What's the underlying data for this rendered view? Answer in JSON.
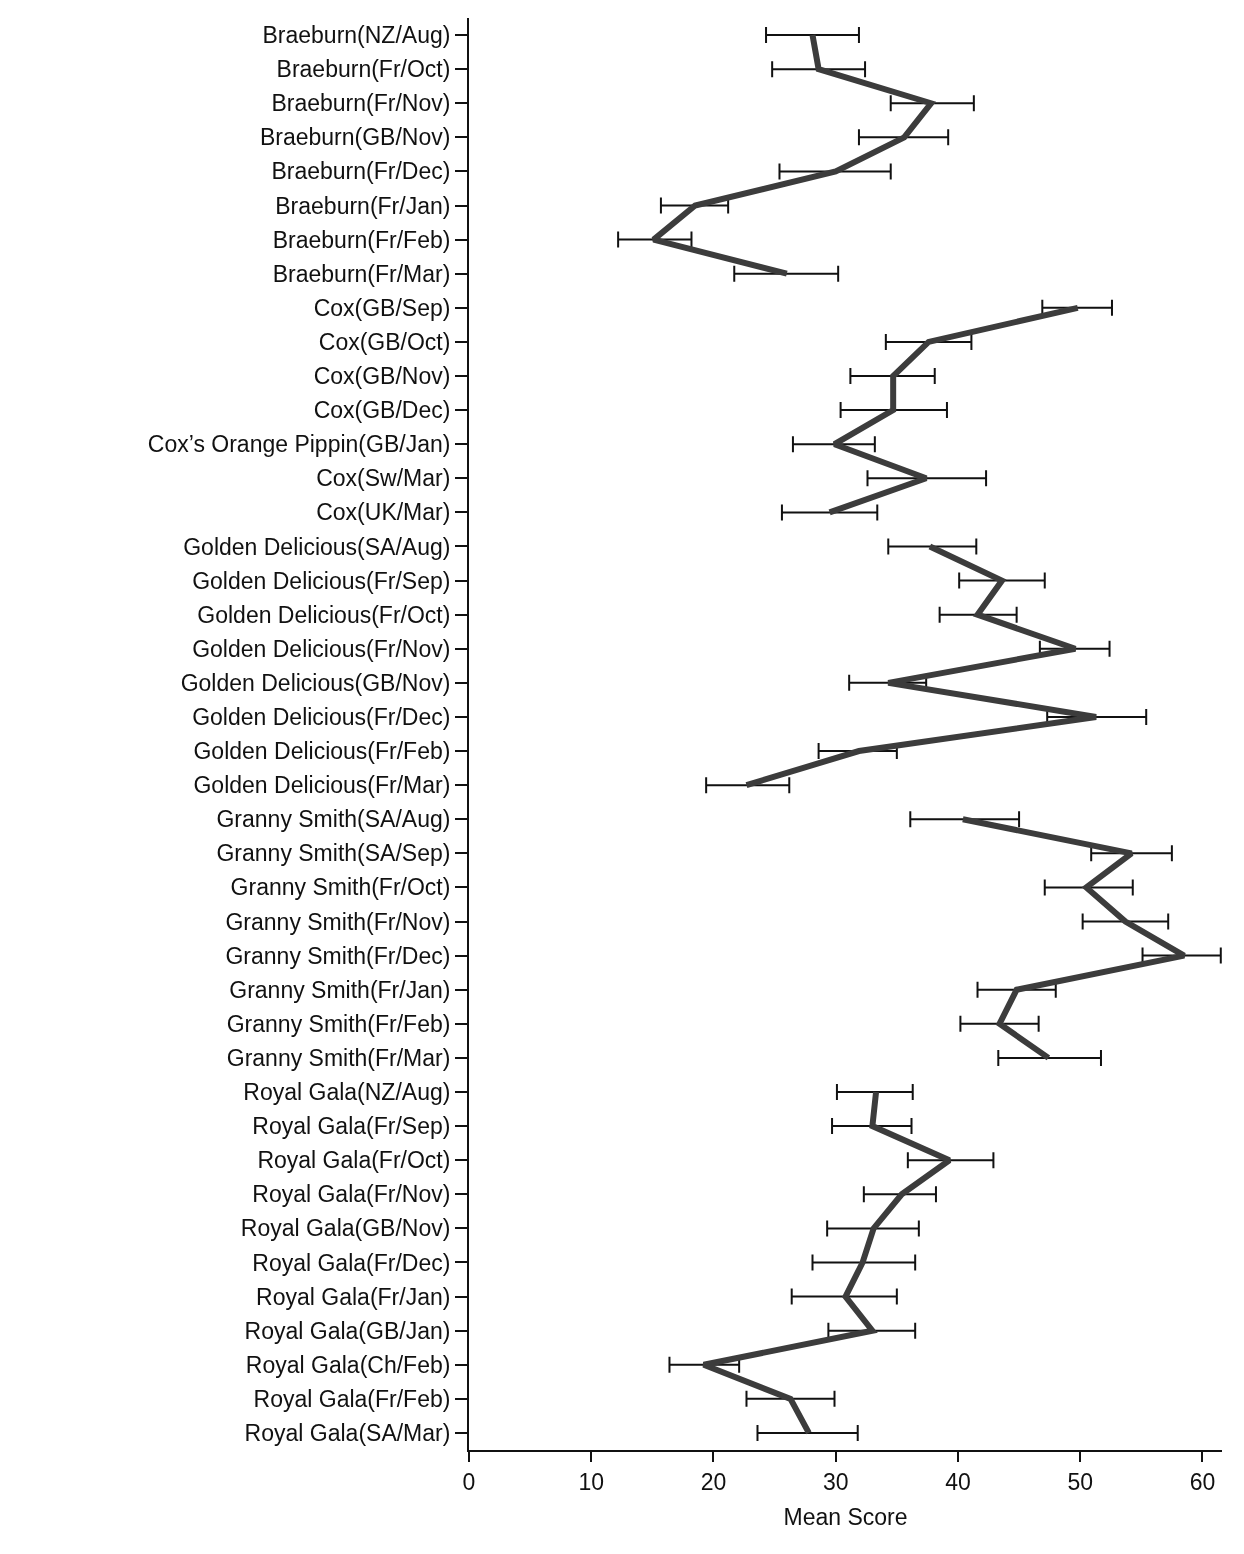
{
  "chart_data": {
    "type": "line",
    "orientation": "horizontal",
    "xlabel": "Mean Score",
    "categories": [
      "Braeburn(NZ/Aug)",
      "Braeburn(Fr/Oct)",
      "Braeburn(Fr/Nov)",
      "Braeburn(GB/Nov)",
      "Braeburn(Fr/Dec)",
      "Braeburn(Fr/Jan)",
      "Braeburn(Fr/Feb)",
      "Braeburn(Fr/Mar)",
      "Cox(GB/Sep)",
      "Cox(GB/Oct)",
      "Cox(GB/Nov)",
      "Cox(GB/Dec)",
      "Cox’s Orange Pippin(GB/Jan)",
      "Cox(Sw/Mar)",
      "Cox(UK/Mar)",
      "Golden Delicious(SA/Aug)",
      "Golden Delicious(Fr/Sep)",
      "Golden Delicious(Fr/Oct)",
      "Golden Delicious(Fr/Nov)",
      "Golden Delicious(GB/Nov)",
      "Golden Delicious(Fr/Dec)",
      "Golden Delicious(Fr/Feb)",
      "Golden Delicious(Fr/Mar)",
      "Granny Smith(SA/Aug)",
      "Granny Smith(SA/Sep)",
      "Granny Smith(Fr/Oct)",
      "Granny Smith(Fr/Nov)",
      "Granny Smith(Fr/Dec)",
      "Granny Smith(Fr/Jan)",
      "Granny Smith(Fr/Feb)",
      "Granny Smith(Fr/Mar)",
      "Royal Gala(NZ/Aug)",
      "Royal Gala(Fr/Sep)",
      "Royal Gala(Fr/Oct)",
      "Royal Gala(Fr/Nov)",
      "Royal Gala(GB/Nov)",
      "Royal Gala(Fr/Dec)",
      "Royal Gala(Fr/Jan)",
      "Royal Gala(GB/Jan)",
      "Royal Gala(Ch/Feb)",
      "Royal Gala(Fr/Feb)",
      "Royal Gala(SA/Mar)"
    ],
    "series": [
      {
        "color": "#3c3c3c",
        "values": [
          28.1,
          28.6,
          37.8,
          35.6,
          30.0,
          18.5,
          15.1,
          26.0,
          null,
          null,
          null,
          null,
          null,
          null,
          null,
          null,
          null,
          null,
          null,
          null,
          null,
          null,
          null,
          null,
          null,
          null,
          null,
          null,
          null,
          null,
          null,
          null,
          null,
          null,
          null,
          null,
          null,
          null,
          null,
          null,
          null,
          null
        ],
        "errors": [
          [
            24.3,
            31.9
          ],
          [
            24.8,
            32.4
          ],
          [
            34.5,
            41.3
          ],
          [
            31.9,
            39.2
          ],
          [
            25.4,
            34.5
          ],
          [
            15.7,
            21.2
          ],
          [
            12.2,
            18.2
          ],
          [
            21.7,
            30.2
          ],
          null,
          null,
          null,
          null,
          null,
          null,
          null,
          null,
          null,
          null,
          null,
          null,
          null,
          null,
          null,
          null,
          null,
          null,
          null,
          null,
          null,
          null,
          null,
          null,
          null,
          null,
          null,
          null,
          null,
          null,
          null,
          null,
          null,
          null
        ]
      },
      {
        "color": "#3c3c3c",
        "values": [
          null,
          null,
          null,
          null,
          null,
          null,
          null,
          null,
          49.8,
          37.6,
          34.7,
          34.7,
          29.9,
          37.4,
          29.5,
          null,
          null,
          null,
          null,
          null,
          null,
          null,
          null,
          null,
          null,
          null,
          null,
          null,
          null,
          null,
          null,
          null,
          null,
          null,
          null,
          null,
          null,
          null,
          null,
          null,
          null,
          null
        ],
        "errors": [
          null,
          null,
          null,
          null,
          null,
          null,
          null,
          null,
          [
            46.9,
            52.6
          ],
          [
            34.1,
            41.1
          ],
          [
            31.2,
            38.1
          ],
          [
            30.4,
            39.1
          ],
          [
            26.5,
            33.2
          ],
          [
            32.6,
            42.3
          ],
          [
            25.6,
            33.4
          ],
          null,
          null,
          null,
          null,
          null,
          null,
          null,
          null,
          null,
          null,
          null,
          null,
          null,
          null,
          null,
          null,
          null,
          null,
          null,
          null,
          null,
          null,
          null,
          null,
          null,
          null,
          null
        ]
      },
      {
        "color": "#3c3c3c",
        "values": [
          null,
          null,
          null,
          null,
          null,
          null,
          null,
          null,
          null,
          null,
          null,
          null,
          null,
          null,
          null,
          37.7,
          43.6,
          41.6,
          49.6,
          34.3,
          51.3,
          31.9,
          22.7,
          null,
          null,
          null,
          null,
          null,
          null,
          null,
          null,
          null,
          null,
          null,
          null,
          null,
          null,
          null,
          null,
          null,
          null,
          null
        ],
        "errors": [
          null,
          null,
          null,
          null,
          null,
          null,
          null,
          null,
          null,
          null,
          null,
          null,
          null,
          null,
          null,
          [
            34.3,
            41.5
          ],
          [
            40.1,
            47.1
          ],
          [
            38.5,
            44.8
          ],
          [
            46.7,
            52.4
          ],
          [
            31.1,
            37.4
          ],
          [
            47.3,
            55.4
          ],
          [
            28.6,
            35.0
          ],
          [
            19.4,
            26.2
          ],
          null,
          null,
          null,
          null,
          null,
          null,
          null,
          null,
          null,
          null,
          null,
          null,
          null,
          null,
          null,
          null,
          null,
          null,
          null
        ]
      },
      {
        "color": "#3c3c3c",
        "values": [
          null,
          null,
          null,
          null,
          null,
          null,
          null,
          null,
          null,
          null,
          null,
          null,
          null,
          null,
          null,
          null,
          null,
          null,
          null,
          null,
          null,
          null,
          null,
          40.4,
          54.2,
          50.5,
          53.7,
          58.5,
          44.8,
          43.4,
          47.4,
          null,
          null,
          null,
          null,
          null,
          null,
          null,
          null,
          null,
          null,
          null
        ],
        "errors": [
          null,
          null,
          null,
          null,
          null,
          null,
          null,
          null,
          null,
          null,
          null,
          null,
          null,
          null,
          null,
          null,
          null,
          null,
          null,
          null,
          null,
          null,
          null,
          [
            36.1,
            45.0
          ],
          [
            50.9,
            57.5
          ],
          [
            47.1,
            54.3
          ],
          [
            50.2,
            57.2
          ],
          [
            55.1,
            61.5
          ],
          [
            41.6,
            48.0
          ],
          [
            40.2,
            46.6
          ],
          [
            43.3,
            51.7
          ],
          null,
          null,
          null,
          null,
          null,
          null,
          null,
          null,
          null,
          null,
          null
        ]
      },
      {
        "color": "#3c3c3c",
        "values": [
          null,
          null,
          null,
          null,
          null,
          null,
          null,
          null,
          null,
          null,
          null,
          null,
          null,
          null,
          null,
          null,
          null,
          null,
          null,
          null,
          null,
          null,
          null,
          null,
          null,
          null,
          null,
          null,
          null,
          null,
          null,
          33.3,
          33.0,
          39.3,
          35.4,
          33.1,
          32.2,
          30.8,
          33.0,
          19.2,
          26.3,
          27.8
        ],
        "errors": [
          null,
          null,
          null,
          null,
          null,
          null,
          null,
          null,
          null,
          null,
          null,
          null,
          null,
          null,
          null,
          null,
          null,
          null,
          null,
          null,
          null,
          null,
          null,
          null,
          null,
          null,
          null,
          null,
          null,
          null,
          null,
          [
            30.1,
            36.3
          ],
          [
            29.7,
            36.2
          ],
          [
            35.9,
            42.9
          ],
          [
            32.3,
            38.2
          ],
          [
            29.3,
            36.8
          ],
          [
            28.1,
            36.5
          ],
          [
            26.4,
            35.0
          ],
          [
            29.4,
            36.5
          ],
          [
            16.4,
            22.1
          ],
          [
            22.7,
            29.9
          ],
          [
            23.6,
            31.8
          ]
        ]
      }
    ],
    "xlim": [
      0,
      61.6
    ],
    "xticks": [
      0,
      10,
      20,
      30,
      40,
      50,
      60
    ],
    "marker": "none",
    "line_style": "solid"
  }
}
